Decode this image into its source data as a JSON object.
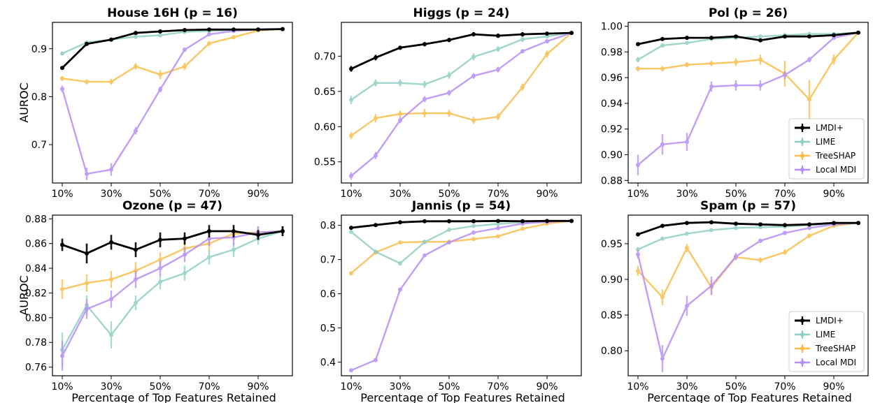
{
  "figure": {
    "xlabel": "Percentage of Top Features Retained",
    "ylabel": "AUROC"
  },
  "colors": {
    "LMDI+": "#000000",
    "LIME": "#8fcfc4",
    "TreeSHAP": "#fbbd49",
    "Local MDI": "#b68ef7"
  },
  "chart_data": [
    {
      "type": "line",
      "title": "House 16H (p = 16)",
      "x": [
        10,
        20,
        30,
        40,
        50,
        60,
        70,
        80,
        90,
        100
      ],
      "xticks": [
        "10%",
        "30%",
        "50%",
        "70%",
        "90%"
      ],
      "ylim": [
        0.62,
        0.955
      ],
      "yticks": [
        0.7,
        0.8,
        0.9
      ],
      "ylabel": "AUROC",
      "xlabel": "",
      "legend": false,
      "series": [
        {
          "name": "LMDI+",
          "values": [
            0.86,
            0.91,
            0.919,
            0.933,
            0.936,
            0.939,
            0.94,
            0.94,
            0.94,
            0.941
          ],
          "err": [
            0.004,
            0.004,
            0.003,
            0.003,
            0.003,
            0.003,
            0.003,
            0.002,
            0.002,
            0.002
          ]
        },
        {
          "name": "LIME",
          "values": [
            0.89,
            0.913,
            0.919,
            0.925,
            0.928,
            0.935,
            0.937,
            0.939,
            0.94,
            0.941
          ],
          "err": [
            0.004,
            0.004,
            0.003,
            0.003,
            0.003,
            0.003,
            0.003,
            0.002,
            0.002,
            0.002
          ]
        },
        {
          "name": "TreeSHAP",
          "values": [
            0.838,
            0.831,
            0.831,
            0.863,
            0.846,
            0.863,
            0.911,
            0.924,
            0.938,
            0.941
          ],
          "err": [
            0.005,
            0.005,
            0.006,
            0.007,
            0.009,
            0.008,
            0.005,
            0.004,
            0.003,
            0.002
          ]
        },
        {
          "name": "Local MDI",
          "values": [
            0.816,
            0.639,
            0.648,
            0.729,
            0.815,
            0.898,
            0.93,
            0.937,
            0.94,
            0.941
          ],
          "err": [
            0.007,
            0.013,
            0.013,
            0.008,
            0.006,
            0.004,
            0.003,
            0.003,
            0.002,
            0.002
          ]
        }
      ]
    },
    {
      "type": "line",
      "title": "Higgs (p = 24)",
      "x": [
        10,
        20,
        30,
        40,
        50,
        60,
        70,
        80,
        90,
        100
      ],
      "xticks": [
        "10%",
        "30%",
        "50%",
        "70%",
        "90%"
      ],
      "ylim": [
        0.52,
        0.748
      ],
      "yticks": [
        0.55,
        0.6,
        0.65,
        0.7
      ],
      "ylabel": "",
      "xlabel": "",
      "legend": false,
      "series": [
        {
          "name": "LMDI+",
          "values": [
            0.682,
            0.698,
            0.712,
            0.717,
            0.723,
            0.731,
            0.729,
            0.731,
            0.732,
            0.733
          ],
          "err": [
            0.004,
            0.004,
            0.003,
            0.003,
            0.003,
            0.003,
            0.003,
            0.003,
            0.002,
            0.002
          ]
        },
        {
          "name": "LIME",
          "values": [
            0.638,
            0.662,
            0.662,
            0.66,
            0.673,
            0.699,
            0.71,
            0.724,
            0.728,
            0.733
          ],
          "err": [
            0.006,
            0.005,
            0.005,
            0.005,
            0.005,
            0.005,
            0.004,
            0.004,
            0.003,
            0.002
          ]
        },
        {
          "name": "TreeSHAP",
          "values": [
            0.587,
            0.612,
            0.618,
            0.619,
            0.619,
            0.609,
            0.614,
            0.656,
            0.703,
            0.733
          ],
          "err": [
            0.005,
            0.006,
            0.005,
            0.006,
            0.005,
            0.005,
            0.005,
            0.005,
            0.005,
            0.002
          ]
        },
        {
          "name": "Local MDI",
          "values": [
            0.53,
            0.559,
            0.609,
            0.639,
            0.648,
            0.672,
            0.681,
            0.707,
            0.721,
            0.733
          ],
          "err": [
            0.005,
            0.005,
            0.004,
            0.004,
            0.004,
            0.004,
            0.004,
            0.003,
            0.003,
            0.002
          ]
        }
      ]
    },
    {
      "type": "line",
      "title": "Pol (p = 26)",
      "x": [
        10,
        20,
        30,
        40,
        50,
        60,
        70,
        80,
        90,
        100
      ],
      "xticks": [
        "10%",
        "30%",
        "50%",
        "70%",
        "90%"
      ],
      "ylim": [
        0.878,
        1.003
      ],
      "yticks": [
        0.88,
        0.9,
        0.92,
        0.94,
        0.96,
        0.98,
        1.0
      ],
      "ylabel": "",
      "xlabel": "",
      "legend": true,
      "legend_position": "lower-right",
      "series": [
        {
          "name": "LMDI+",
          "values": [
            0.986,
            0.99,
            0.991,
            0.991,
            0.992,
            0.989,
            0.992,
            0.992,
            0.993,
            0.995
          ],
          "err": [
            0.001,
            0.001,
            0.001,
            0.001,
            0.001,
            0.001,
            0.001,
            0.001,
            0.001,
            0.001
          ]
        },
        {
          "name": "LIME",
          "values": [
            0.974,
            0.985,
            0.987,
            0.99,
            0.991,
            0.992,
            0.993,
            0.994,
            0.994,
            0.995
          ],
          "err": [
            0.002,
            0.001,
            0.001,
            0.001,
            0.001,
            0.001,
            0.001,
            0.001,
            0.001,
            0.001
          ]
        },
        {
          "name": "TreeSHAP",
          "values": [
            0.967,
            0.967,
            0.97,
            0.971,
            0.972,
            0.974,
            0.963,
            0.943,
            0.974,
            0.995
          ],
          "err": [
            0.002,
            0.002,
            0.002,
            0.002,
            0.003,
            0.004,
            0.01,
            0.015,
            0.004,
            0.001
          ]
        },
        {
          "name": "Local MDI",
          "values": [
            0.892,
            0.908,
            0.91,
            0.953,
            0.954,
            0.954,
            0.962,
            0.974,
            0.991,
            0.995
          ],
          "err": [
            0.008,
            0.008,
            0.007,
            0.004,
            0.004,
            0.004,
            0.003,
            0.002,
            0.001,
            0.001
          ]
        }
      ]
    },
    {
      "type": "line",
      "title": "Ozone (p = 47)",
      "x": [
        10,
        20,
        30,
        40,
        50,
        60,
        70,
        80,
        90,
        100
      ],
      "xticks": [
        "10%",
        "30%",
        "50%",
        "70%",
        "90%"
      ],
      "ylim": [
        0.753,
        0.883
      ],
      "yticks": [
        0.76,
        0.78,
        0.8,
        0.82,
        0.84,
        0.86,
        0.88
      ],
      "ylabel": "AUROC",
      "xlabel": "Percentage of Top Features Retained",
      "legend": false,
      "series": [
        {
          "name": "LMDI+",
          "values": [
            0.859,
            0.852,
            0.861,
            0.855,
            0.863,
            0.864,
            0.87,
            0.87,
            0.867,
            0.87
          ],
          "err": [
            0.005,
            0.008,
            0.006,
            0.006,
            0.006,
            0.005,
            0.005,
            0.005,
            0.004,
            0.004
          ]
        },
        {
          "name": "LIME",
          "values": [
            0.774,
            0.81,
            0.786,
            0.812,
            0.829,
            0.836,
            0.849,
            0.855,
            0.864,
            0.87
          ],
          "err": [
            0.014,
            0.008,
            0.011,
            0.006,
            0.006,
            0.006,
            0.006,
            0.006,
            0.005,
            0.004
          ]
        },
        {
          "name": "TreeSHAP",
          "values": [
            0.823,
            0.828,
            0.831,
            0.838,
            0.847,
            0.856,
            0.86,
            0.868,
            0.869,
            0.87
          ],
          "err": [
            0.008,
            0.007,
            0.007,
            0.007,
            0.006,
            0.006,
            0.006,
            0.005,
            0.005,
            0.004
          ]
        },
        {
          "name": "Local MDI",
          "values": [
            0.769,
            0.807,
            0.815,
            0.831,
            0.84,
            0.851,
            0.864,
            0.865,
            0.869,
            0.87
          ],
          "err": [
            0.012,
            0.008,
            0.007,
            0.007,
            0.006,
            0.006,
            0.006,
            0.006,
            0.005,
            0.004
          ]
        }
      ]
    },
    {
      "type": "line",
      "title": "Jannis (p = 54)",
      "x": [
        10,
        20,
        30,
        40,
        50,
        60,
        70,
        80,
        90,
        100
      ],
      "xticks": [
        "10%",
        "30%",
        "50%",
        "70%",
        "90%"
      ],
      "ylim": [
        0.36,
        0.83
      ],
      "yticks": [
        0.4,
        0.5,
        0.6,
        0.7,
        0.8
      ],
      "ylabel": "",
      "xlabel": "Percentage of Top Features Retained",
      "legend": false,
      "series": [
        {
          "name": "LMDI+",
          "values": [
            0.793,
            0.801,
            0.809,
            0.812,
            0.812,
            0.812,
            0.813,
            0.812,
            0.813,
            0.813
          ],
          "err": [
            0.003,
            0.003,
            0.003,
            0.002,
            0.002,
            0.002,
            0.002,
            0.002,
            0.002,
            0.002
          ]
        },
        {
          "name": "LIME",
          "values": [
            0.781,
            0.723,
            0.689,
            0.751,
            0.787,
            0.798,
            0.804,
            0.809,
            0.812,
            0.813
          ],
          "err": [
            0.004,
            0.005,
            0.005,
            0.004,
            0.003,
            0.003,
            0.003,
            0.002,
            0.002,
            0.002
          ]
        },
        {
          "name": "TreeSHAP",
          "values": [
            0.66,
            0.721,
            0.75,
            0.752,
            0.752,
            0.76,
            0.768,
            0.79,
            0.805,
            0.813
          ],
          "err": [
            0.004,
            0.004,
            0.003,
            0.003,
            0.003,
            0.003,
            0.003,
            0.003,
            0.002,
            0.002
          ]
        },
        {
          "name": "Local MDI",
          "values": [
            0.376,
            0.406,
            0.612,
            0.712,
            0.75,
            0.779,
            0.792,
            0.805,
            0.81,
            0.813
          ],
          "err": [
            0.004,
            0.005,
            0.006,
            0.004,
            0.003,
            0.003,
            0.003,
            0.002,
            0.002,
            0.002
          ]
        }
      ]
    },
    {
      "type": "line",
      "title": "Spam (p = 57)",
      "x": [
        10,
        20,
        30,
        40,
        50,
        60,
        70,
        80,
        90,
        100
      ],
      "xticks": [
        "10%",
        "30%",
        "50%",
        "70%",
        "90%"
      ],
      "ylim": [
        0.765,
        0.99
      ],
      "yticks": [
        0.8,
        0.85,
        0.9,
        0.95
      ],
      "ylabel": "",
      "xlabel": "Percentage of Top Features Retained",
      "legend": true,
      "legend_position": "lower-right",
      "series": [
        {
          "name": "LMDI+",
          "values": [
            0.963,
            0.975,
            0.979,
            0.98,
            0.978,
            0.977,
            0.976,
            0.977,
            0.979,
            0.979
          ],
          "err": [
            0.002,
            0.002,
            0.002,
            0.002,
            0.002,
            0.002,
            0.002,
            0.002,
            0.002,
            0.002
          ]
        },
        {
          "name": "LIME",
          "values": [
            0.942,
            0.957,
            0.964,
            0.969,
            0.972,
            0.973,
            0.974,
            0.976,
            0.978,
            0.979
          ],
          "err": [
            0.003,
            0.002,
            0.002,
            0.002,
            0.002,
            0.002,
            0.002,
            0.002,
            0.002,
            0.002
          ]
        },
        {
          "name": "TreeSHAP",
          "values": [
            0.912,
            0.875,
            0.944,
            0.889,
            0.931,
            0.927,
            0.938,
            0.961,
            0.975,
            0.979
          ],
          "err": [
            0.007,
            0.011,
            0.006,
            0.01,
            0.004,
            0.004,
            0.004,
            0.003,
            0.002,
            0.002
          ]
        },
        {
          "name": "Local MDI",
          "values": [
            0.935,
            0.789,
            0.863,
            0.891,
            0.932,
            0.954,
            0.965,
            0.972,
            0.977,
            0.979
          ],
          "err": [
            0.006,
            0.019,
            0.014,
            0.013,
            0.005,
            0.003,
            0.003,
            0.002,
            0.002,
            0.002
          ]
        }
      ]
    }
  ]
}
